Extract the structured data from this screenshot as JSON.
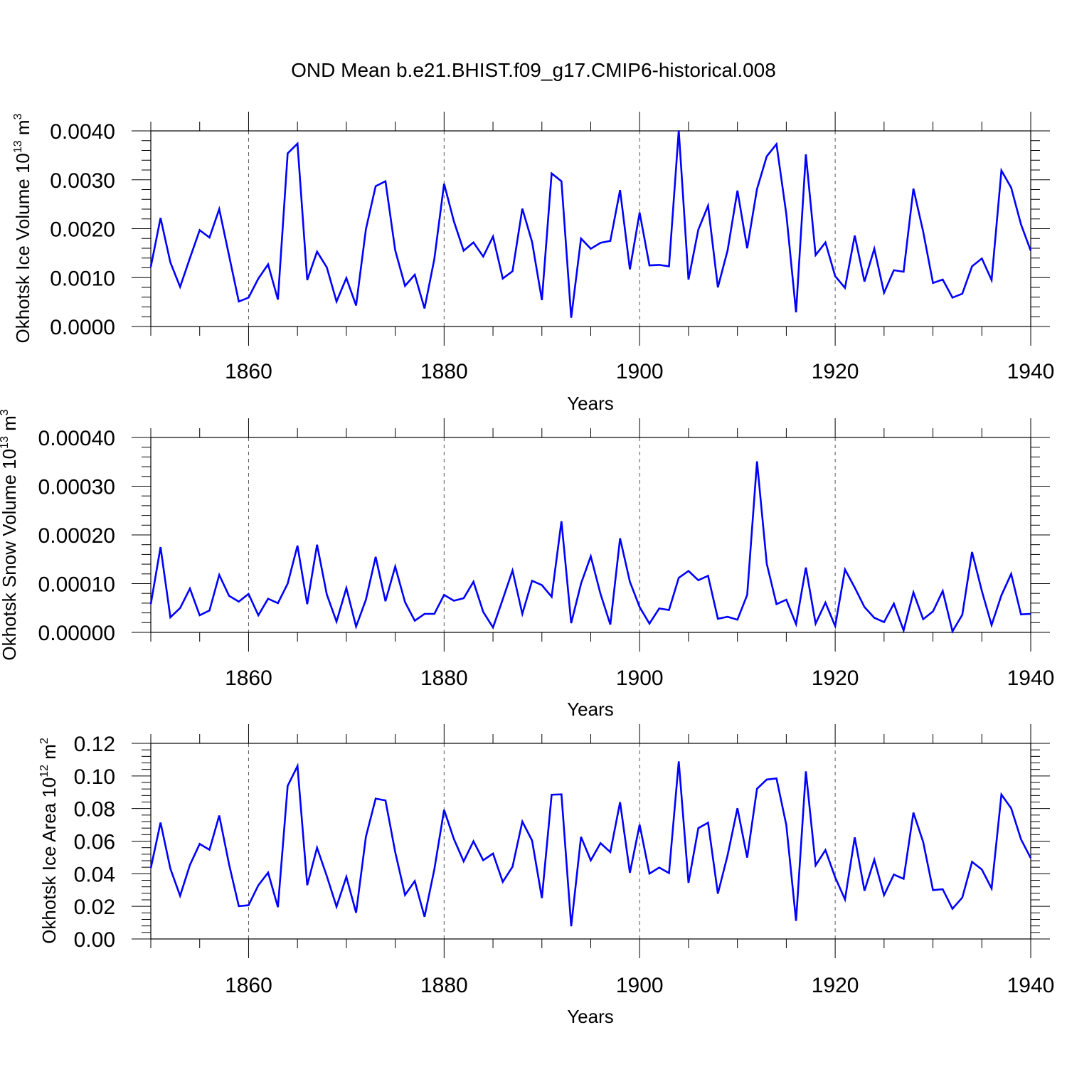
{
  "title": "OND Mean b.e21.BHIST.f09_g17.CMIP6-historical.008",
  "line_color": "#0000ff",
  "chart_data": [
    {
      "type": "line",
      "name": "ice-volume",
      "ylabel": "Okhotsk Ice Volume 10",
      "ylabel_exp": "13",
      "ylabel_unit": "m",
      "ylabel_unit_exp": "3",
      "xlabel": "Years",
      "xlim": [
        1850,
        1940
      ],
      "ylim": [
        0,
        0.004
      ],
      "yticks": [
        0,
        0.001,
        0.002,
        0.003,
        0.004
      ],
      "ytick_labels": [
        "0.0000",
        "0.0010",
        "0.0020",
        "0.0030",
        "0.0040"
      ],
      "xticks": [
        1860,
        1880,
        1900,
        1920,
        1940
      ],
      "xtick_labels": [
        "1860",
        "1880",
        "1900",
        "1920",
        "1940"
      ],
      "x_start": 1850,
      "values": [
        0.00122,
        0.00222,
        0.00131,
        0.00081,
        0.0014,
        0.00197,
        0.00182,
        0.0024,
        0.00145,
        0.00051,
        0.00059,
        0.00098,
        0.00127,
        0.00055,
        0.00354,
        0.00374,
        0.00095,
        0.00153,
        0.00121,
        0.00051,
        0.00099,
        0.00043,
        0.00199,
        0.00287,
        0.00297,
        0.00156,
        0.00083,
        0.00106,
        0.00037,
        0.00138,
        0.00292,
        0.00215,
        0.00155,
        0.00172,
        0.00143,
        0.00184,
        0.00098,
        0.00113,
        0.00241,
        0.00173,
        0.00054,
        0.00313,
        0.00297,
        0.00018,
        0.0018,
        0.00159,
        0.00171,
        0.00175,
        0.00279,
        0.00117,
        0.00233,
        0.00125,
        0.00126,
        0.00123,
        0.00401,
        0.00096,
        0.00198,
        0.00247,
        0.0008,
        0.00156,
        0.00278,
        0.0016,
        0.00281,
        0.00348,
        0.00373,
        0.0023,
        0.00029,
        0.00352,
        0.00146,
        0.00172,
        0.00103,
        0.00079,
        0.00186,
        0.00092,
        0.00159,
        0.00069,
        0.00115,
        0.00112,
        0.00282,
        0.00194,
        0.00089,
        0.00096,
        0.00059,
        0.00067,
        0.00123,
        0.00139,
        0.00095,
        0.00319,
        0.00284,
        0.00209,
        0.00155
      ]
    },
    {
      "type": "line",
      "name": "snow-volume",
      "ylabel": "Okhotsk Snow Volume 10",
      "ylabel_exp": "13",
      "ylabel_unit": "m",
      "ylabel_unit_exp": "3",
      "xlabel": "Years",
      "xlim": [
        1850,
        1940
      ],
      "ylim": [
        0,
        0.0004
      ],
      "yticks": [
        0,
        0.0001,
        0.0002,
        0.0003,
        0.0004
      ],
      "ytick_labels": [
        "0.00000",
        "0.00010",
        "0.00020",
        "0.00030",
        "0.00040"
      ],
      "xticks": [
        1860,
        1880,
        1900,
        1920,
        1940
      ],
      "xtick_labels": [
        "1860",
        "1880",
        "1900",
        "1920",
        "1940"
      ],
      "x_start": 1850,
      "values": [
        5.8e-05,
        0.000175,
        3.1e-05,
        5e-05,
        9e-05,
        3.5e-05,
        4.5e-05,
        0.000118,
        7.5e-05,
        6.3e-05,
        7.9e-05,
        3.5e-05,
        6.9e-05,
        6e-05,
        0.0001,
        0.000178,
        5.8e-05,
        0.00018,
        7.8e-05,
        2.2e-05,
        9.1e-05,
        1.2e-05,
        6.7e-05,
        0.000155,
        6.4e-05,
        0.000135,
        6.2e-05,
        2.4e-05,
        3.8e-05,
        3.8e-05,
        7.7e-05,
        6.5e-05,
        7e-05,
        0.000104,
        4.2e-05,
        1e-05,
        6.8e-05,
        0.000127,
        3.8e-05,
        0.000106,
        9.7e-05,
        7.3e-05,
        0.000228,
        1.9e-05,
        0.0001,
        0.000156,
        7.9e-05,
        1.6e-05,
        0.000193,
        0.000104,
        5.2e-05,
        1.8e-05,
        4.9e-05,
        4.6e-05,
        0.000112,
        0.000126,
        0.000107,
        0.000116,
        2.8e-05,
        3.2e-05,
        2.6e-05,
        7.7e-05,
        0.000351,
        0.000141,
        5.8e-05,
        6.7e-05,
        1.7e-05,
        0.000133,
        1.8e-05,
        6.1e-05,
        1.3e-05,
        0.000129,
        9.2e-05,
        5.2e-05,
        3e-05,
        2.1e-05,
        5.9e-05,
        4e-06,
        8.2e-05,
        2.7e-05,
        4.3e-05,
        8.5e-05,
        2e-06,
        3.6e-05,
        0.000165,
        8.5e-05,
        1.5e-05,
        7.6e-05,
        0.00012,
        3.7e-05,
        3.8e-05
      ]
    },
    {
      "type": "line",
      "name": "ice-area",
      "ylabel": "Okhotsk Ice Area 10",
      "ylabel_exp": "12",
      "ylabel_unit": "m",
      "ylabel_unit_exp": "2",
      "xlabel": "Years",
      "xlim": [
        1850,
        1940
      ],
      "ylim": [
        0,
        0.12
      ],
      "yticks": [
        0,
        0.02,
        0.04,
        0.06,
        0.08,
        0.1,
        0.12
      ],
      "ytick_labels": [
        "0.00",
        "0.02",
        "0.04",
        "0.06",
        "0.08",
        "0.10",
        "0.12"
      ],
      "xticks": [
        1860,
        1880,
        1900,
        1920,
        1940
      ],
      "xtick_labels": [
        "1860",
        "1880",
        "1900",
        "1920",
        "1940"
      ],
      "x_start": 1850,
      "values": [
        0.0435,
        0.0714,
        0.0431,
        0.0265,
        0.0454,
        0.0583,
        0.0547,
        0.0757,
        0.0458,
        0.0201,
        0.0207,
        0.0329,
        0.0407,
        0.0195,
        0.0939,
        0.1061,
        0.033,
        0.056,
        0.0386,
        0.0198,
        0.0381,
        0.0161,
        0.0627,
        0.0861,
        0.085,
        0.0533,
        0.027,
        0.0355,
        0.0136,
        0.0427,
        0.0792,
        0.0613,
        0.0476,
        0.0599,
        0.0483,
        0.0524,
        0.035,
        0.0443,
        0.072,
        0.0604,
        0.0251,
        0.0885,
        0.0887,
        0.0078,
        0.0626,
        0.0482,
        0.0588,
        0.0533,
        0.0839,
        0.0406,
        0.0701,
        0.0401,
        0.0438,
        0.0404,
        0.1089,
        0.0344,
        0.068,
        0.0713,
        0.0278,
        0.0514,
        0.0802,
        0.0499,
        0.0921,
        0.0978,
        0.0985,
        0.0699,
        0.0111,
        0.1028,
        0.0451,
        0.0545,
        0.0378,
        0.0242,
        0.0623,
        0.0296,
        0.0486,
        0.0269,
        0.0395,
        0.0369,
        0.0775,
        0.0595,
        0.03,
        0.0305,
        0.0185,
        0.0254,
        0.0473,
        0.0426,
        0.031,
        0.0886,
        0.0802,
        0.0612,
        0.0496
      ]
    }
  ]
}
